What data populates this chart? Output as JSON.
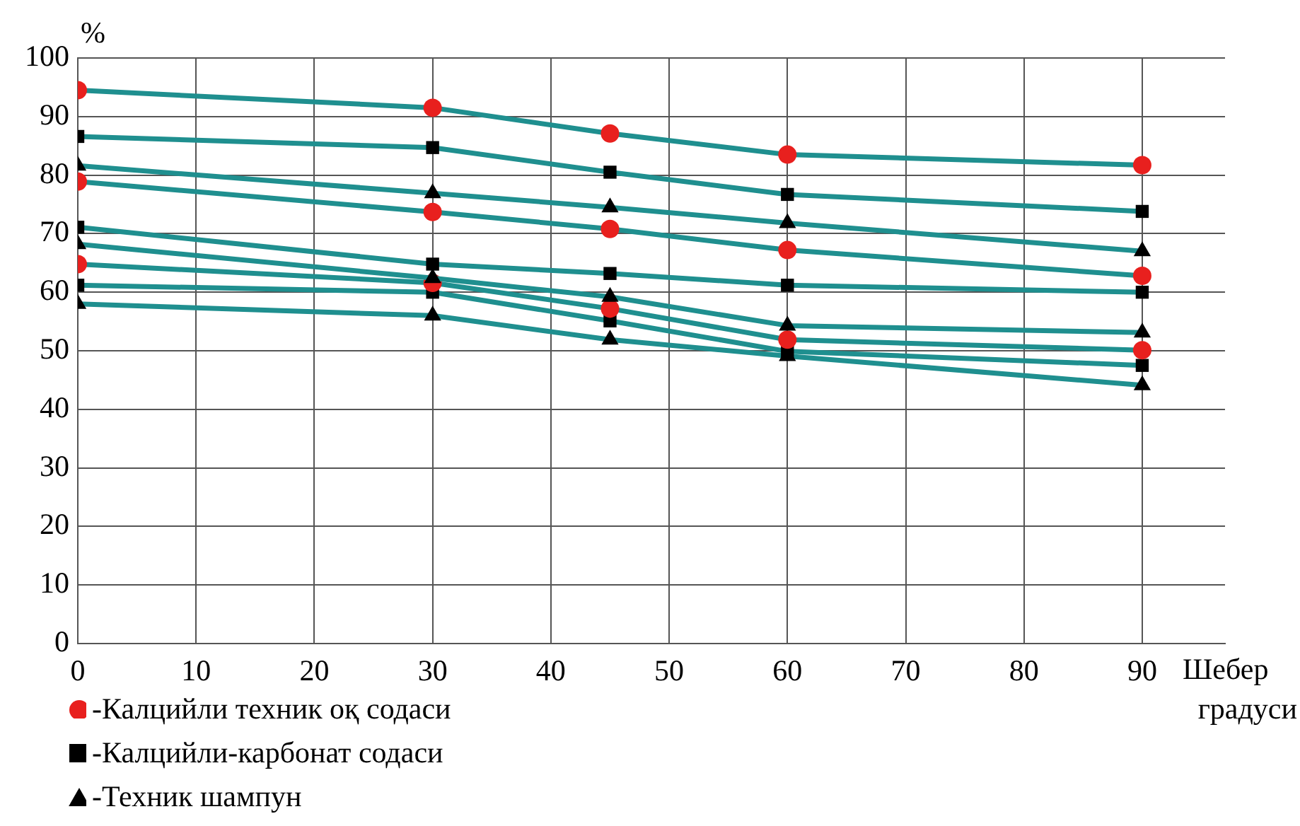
{
  "chart_data": {
    "type": "line",
    "ylabel": "%",
    "xlabel": "Шебер градуси",
    "x": [
      0,
      30,
      45,
      60,
      90
    ],
    "xlim": [
      0,
      97
    ],
    "xticks": [
      0,
      10,
      20,
      30,
      40,
      50,
      60,
      70,
      80,
      90
    ],
    "ylim": [
      0,
      100
    ],
    "yticks": [
      0,
      10,
      20,
      30,
      40,
      50,
      60,
      70,
      80,
      90,
      100
    ],
    "grid": true,
    "legend": "bottom left",
    "series": [
      {
        "name": "-Калцийли техник оқ содаси",
        "marker": "circle",
        "color": "#1f8f8f",
        "colors": [
          "#e8201e",
          "#e8201e",
          "#e8201e",
          "#e8201e",
          "#e8201e"
        ],
        "values": [
          94.5,
          91.5,
          87.1,
          83.5,
          81.7
        ]
      },
      {
        "name": "-Калцийли-карбонат содаси",
        "marker": "square",
        "color": "#1f8f8f",
        "colors": [
          "#000000",
          "#000000",
          "#000000",
          "#000000",
          "#000000"
        ],
        "values": [
          86.6,
          84.7,
          80.5,
          76.7,
          73.8
        ]
      },
      {
        "name": "-Техник шампун",
        "marker": "triangle",
        "color": "#1f8f8f",
        "colors": [
          "#000000",
          "#000000",
          "#000000",
          "#000000",
          "#000000"
        ],
        "values": [
          81.6,
          76.9,
          74.5,
          71.8,
          67
        ]
      },
      {
        "marker": "circle",
        "color": "#1f8f8f",
        "colors": [
          "#e8201e",
          "#e8201e",
          "#e8201e",
          "#e8201e",
          "#e8201e"
        ],
        "values": [
          78.9,
          73.7,
          70.8,
          67.2,
          62.8
        ]
      },
      {
        "marker": "square",
        "color": "#1f8f8f",
        "colors": [
          "#000000",
          "#000000",
          "#000000",
          "#000000",
          "#000000"
        ],
        "values": [
          71.1,
          64.8,
          63.2,
          61.2,
          60
        ]
      },
      {
        "marker": "triangle",
        "color": "#1f8f8f",
        "colors": [
          "#000000",
          "#000000",
          "#000000",
          "#000000",
          "#000000"
        ],
        "values": [
          68.2,
          62.4,
          59.2,
          54.3,
          53.1
        ]
      },
      {
        "marker": "circle",
        "color": "#1f8f8f",
        "colors": [
          "#e8201e",
          "#e8201e",
          "#e8201e",
          "#e8201e",
          "#e8201e"
        ],
        "values": [
          64.8,
          61.6,
          57.2,
          51.9,
          50.1
        ]
      },
      {
        "marker": "square",
        "color": "#1f8f8f",
        "colors": [
          "#000000",
          "#000000",
          "#000000",
          "#000000",
          "#000000"
        ],
        "values": [
          61.2,
          60,
          55.1,
          49.9,
          47.5
        ]
      },
      {
        "marker": "triangle",
        "color": "#1f8f8f",
        "colors": [
          "#000000",
          "#000000",
          "#000000",
          "#000000",
          "#000000"
        ],
        "values": [
          58,
          56,
          51.9,
          49.1,
          44.1
        ]
      }
    ]
  }
}
